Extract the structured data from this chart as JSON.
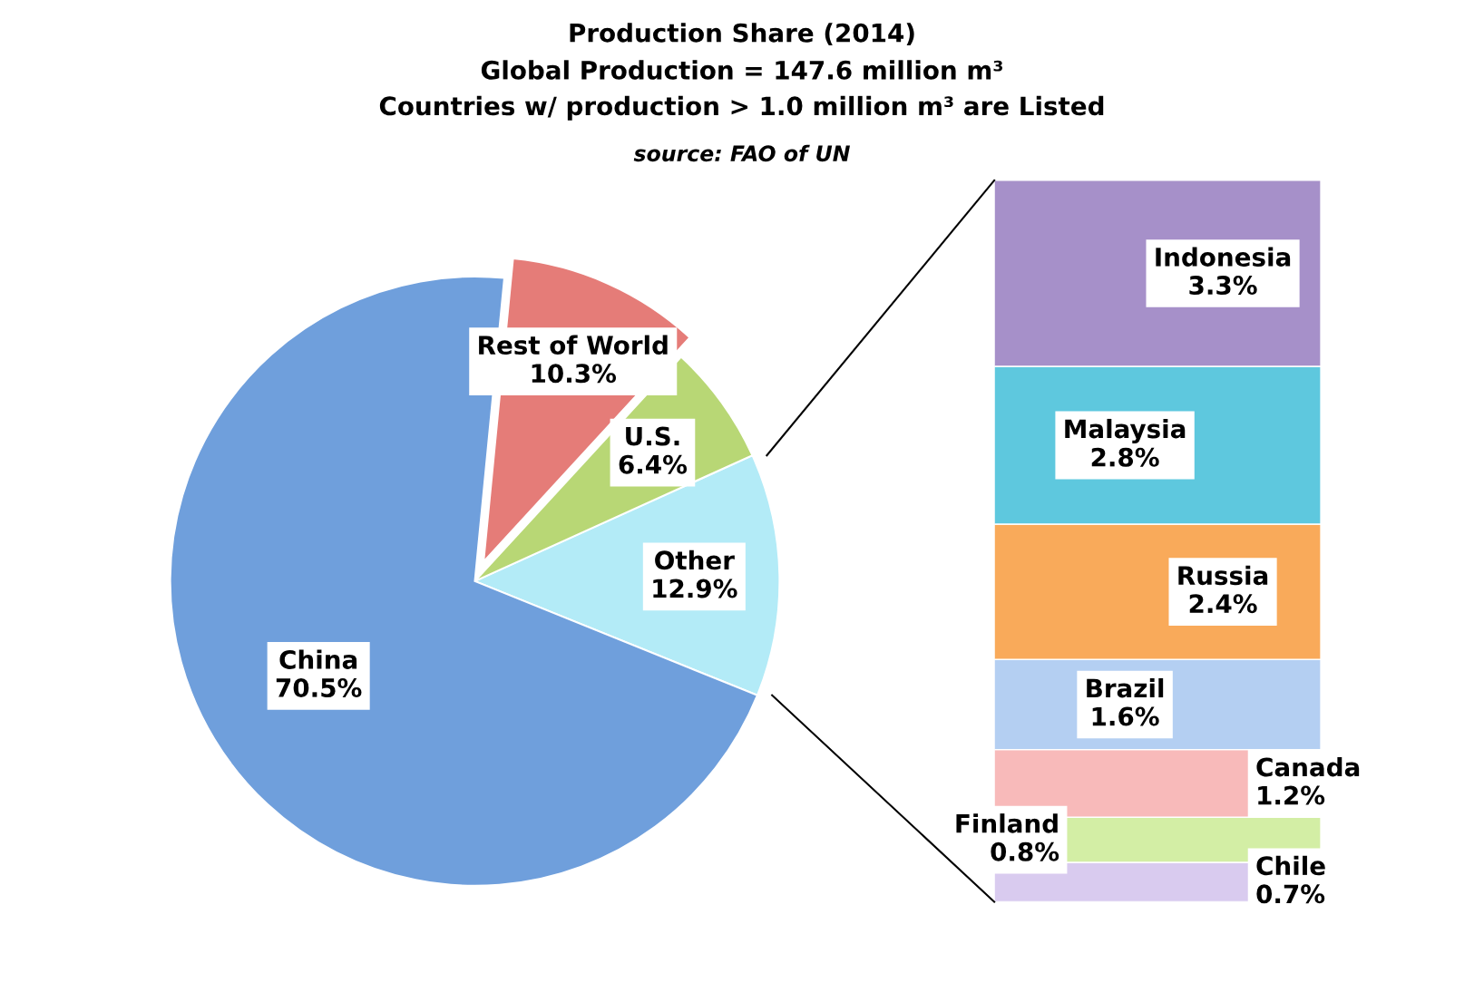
{
  "chart_data": [
    {
      "type": "pie",
      "title": "Production Share (2014)",
      "subtitle": "Global Production = 147.6 million m³\nCountries w/ production > 1.0 million m³ are Listed",
      "annotations": [
        "source: FAO of UN"
      ],
      "categories": [
        "Other",
        "U.S.",
        "Rest of World",
        "China"
      ],
      "values": [
        12.9,
        6.4,
        10.3,
        70.5
      ],
      "colors": [
        "#b3ebf7",
        "#b8d775",
        "#e57c78",
        "#6f9fdc"
      ],
      "value_labels": [
        "12.9%",
        "6.4%",
        "10.3%",
        "70.5%"
      ]
    },
    {
      "type": "bar",
      "stacked": true,
      "categories": [
        null
      ],
      "series": [
        {
          "name": "Chile",
          "color": "#d9cbef",
          "values": [
            0.7
          ],
          "value_labels": [
            "0.7%"
          ]
        },
        {
          "name": "Finland",
          "color": "#d3eea5",
          "values": [
            0.8
          ],
          "value_labels": [
            "0.8%"
          ]
        },
        {
          "name": "Canada",
          "color": "#f8baba",
          "values": [
            1.2
          ],
          "value_labels": [
            "1.2%"
          ]
        },
        {
          "name": "Brazil",
          "color": "#b4cff2",
          "values": [
            1.6
          ],
          "value_labels": [
            "1.6%"
          ]
        },
        {
          "name": "Russia",
          "color": "#f9aa5a",
          "values": [
            2.4
          ],
          "value_labels": [
            "2.4%"
          ]
        },
        {
          "name": "Malaysia",
          "color": "#5ec8de",
          "values": [
            2.8
          ],
          "value_labels": [
            "2.8%"
          ]
        },
        {
          "name": "Indonesia",
          "color": "#a690c9",
          "values": [
            3.3
          ],
          "value_labels": [
            "3.3%"
          ]
        }
      ]
    }
  ]
}
